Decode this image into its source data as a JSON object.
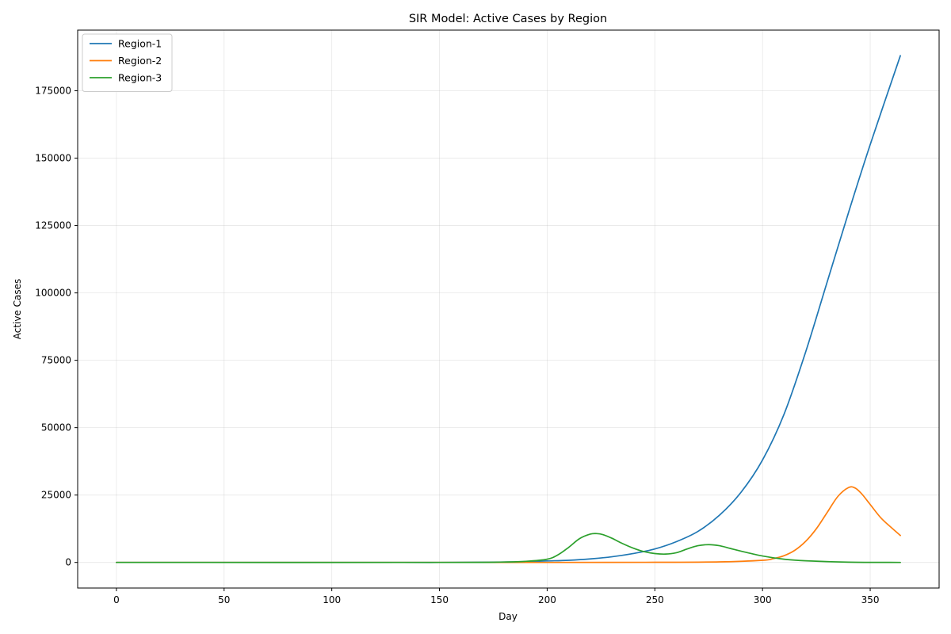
{
  "chart_data": {
    "type": "line",
    "title": "SIR Model: Active Cases by Region",
    "xlabel": "Day",
    "ylabel": "Active Cases",
    "xlim": [
      -18,
      382
    ],
    "ylim": [
      -9500,
      197500
    ],
    "xticks": [
      0,
      50,
      100,
      150,
      200,
      250,
      300,
      350
    ],
    "yticks": [
      0,
      25000,
      50000,
      75000,
      100000,
      125000,
      150000,
      175000
    ],
    "grid": true,
    "legend": "upper-left",
    "series": [
      {
        "name": "Region-1",
        "color": "#1f77b4",
        "x": [
          0,
          100,
          150,
          180,
          190,
          200,
          210,
          220,
          230,
          240,
          250,
          260,
          270,
          280,
          290,
          300,
          310,
          320,
          330,
          340,
          350,
          364
        ],
        "y": [
          0,
          0,
          0,
          150,
          300,
          550,
          800,
          1300,
          2100,
          3300,
          5000,
          7700,
          11500,
          17500,
          26000,
          38000,
          55000,
          78000,
          104000,
          130000,
          155000,
          188000
        ]
      },
      {
        "name": "Region-2",
        "color": "#ff7f0e",
        "x": [
          0,
          100,
          200,
          250,
          280,
          300,
          305,
          310,
          315,
          320,
          325,
          330,
          335,
          340,
          343,
          346,
          350,
          355,
          360,
          364
        ],
        "y": [
          0,
          0,
          0,
          50,
          200,
          800,
          1400,
          2500,
          4500,
          7800,
          12500,
          18500,
          24500,
          27800,
          27600,
          25500,
          21500,
          16500,
          12800,
          10000
        ]
      },
      {
        "name": "Region-3",
        "color": "#2ca02c",
        "x": [
          0,
          150,
          180,
          190,
          200,
          205,
          210,
          215,
          220,
          223,
          226,
          230,
          235,
          240,
          245,
          250,
          255,
          260,
          265,
          270,
          275,
          280,
          285,
          290,
          300,
          310,
          320,
          340,
          364
        ],
        "y": [
          0,
          0,
          150,
          400,
          1200,
          2800,
          5600,
          8800,
          10500,
          10700,
          10300,
          9000,
          7000,
          5300,
          4000,
          3300,
          3100,
          3600,
          5000,
          6200,
          6600,
          6200,
          5200,
          4200,
          2400,
          1200,
          600,
          100,
          0
        ]
      }
    ]
  }
}
